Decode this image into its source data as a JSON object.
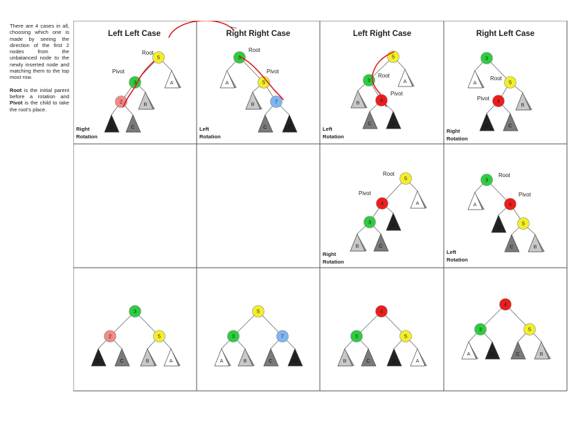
{
  "sidebar": {
    "intro": "There are 4 cases in all, choosing which one is made by seeing the direction of the first 2 nodes from the unbalanced node to the newly inserted node and matching them to the top most row.",
    "root_word": "Root",
    "root_desc": " is the initial parent before a rotation and ",
    "pivot_word": "Pivot",
    "pivot_desc": " is the child to take the root's place."
  },
  "columns": [
    "Left Left Case",
    "Right Right Case",
    "Left Right Case",
    "Right Left Case"
  ],
  "labels": {
    "root": "Root",
    "pivot": "Pivot"
  },
  "rotations": {
    "right_line1": "Right",
    "left_line1": "Left",
    "line2": "Rotation"
  },
  "colors": {
    "green": "#2ecc40",
    "yellow": "#f2ee2a",
    "red": "#ee1c1c",
    "pink": "#f28a85",
    "blue": "#7fb5f2",
    "subtree_white": "#ffffff",
    "subtree_light": "#c8c8c8",
    "subtree_mid": "#7a7a7a",
    "subtree_dark": "#222222",
    "annotation": "#dd1a1a",
    "grid_line": "#555555"
  },
  "cells": [
    {
      "id": "ll-initial",
      "rotation": "right",
      "nodes": [
        {
          "id": "n5",
          "label": "5",
          "color": "yellow"
        },
        {
          "id": "n3",
          "label": "3",
          "color": "green"
        },
        {
          "id": "n2",
          "label": "2",
          "color": "pink"
        }
      ],
      "subtrees": [
        {
          "id": "A",
          "label": "A",
          "shade": "subtree_white"
        },
        {
          "id": "B",
          "label": "B",
          "shade": "subtree_light"
        },
        {
          "id": "C",
          "label": "C",
          "shade": "subtree_mid"
        },
        {
          "id": "D",
          "label": "D",
          "shade": "subtree_dark"
        }
      ],
      "edges": [
        [
          "n5",
          "n3"
        ],
        [
          "n5",
          "A"
        ],
        [
          "n3",
          "n2"
        ],
        [
          "n3",
          "B"
        ],
        [
          "n2",
          "D"
        ],
        [
          "n2",
          "C"
        ]
      ],
      "root": "n5",
      "pivot": "n3"
    },
    {
      "id": "rr-initial",
      "rotation": "left",
      "nodes": [
        {
          "id": "n3",
          "label": "3",
          "color": "green"
        },
        {
          "id": "n5",
          "label": "5",
          "color": "yellow"
        },
        {
          "id": "n7",
          "label": "7",
          "color": "blue"
        }
      ],
      "subtrees": [
        {
          "id": "A",
          "label": "A",
          "shade": "subtree_white"
        },
        {
          "id": "B",
          "label": "B",
          "shade": "subtree_light"
        },
        {
          "id": "C",
          "label": "C",
          "shade": "subtree_mid"
        },
        {
          "id": "D",
          "label": "D",
          "shade": "subtree_dark"
        }
      ],
      "edges": [
        [
          "n3",
          "A"
        ],
        [
          "n3",
          "n5"
        ],
        [
          "n5",
          "B"
        ],
        [
          "n5",
          "n7"
        ],
        [
          "n7",
          "C"
        ],
        [
          "n7",
          "D"
        ]
      ],
      "root": "n3",
      "pivot": "n5"
    },
    {
      "id": "lr-initial",
      "rotation": "left",
      "nodes": [
        {
          "id": "n5",
          "label": "5",
          "color": "yellow"
        },
        {
          "id": "n3",
          "label": "3",
          "color": "green"
        },
        {
          "id": "n4",
          "label": "4",
          "color": "red"
        }
      ],
      "subtrees": [
        {
          "id": "A",
          "label": "A",
          "shade": "subtree_white"
        },
        {
          "id": "B",
          "label": "B",
          "shade": "subtree_light"
        },
        {
          "id": "C",
          "label": "C",
          "shade": "subtree_mid"
        },
        {
          "id": "D",
          "label": "D",
          "shade": "subtree_dark"
        }
      ],
      "edges": [
        [
          "n5",
          "n3"
        ],
        [
          "n5",
          "A"
        ],
        [
          "n3",
          "B"
        ],
        [
          "n3",
          "n4"
        ],
        [
          "n4",
          "C"
        ],
        [
          "n4",
          "D"
        ]
      ],
      "root": "n3",
      "pivot": "n4"
    },
    {
      "id": "rl-initial",
      "rotation": "right",
      "nodes": [
        {
          "id": "n3",
          "label": "3",
          "color": "green"
        },
        {
          "id": "n5",
          "label": "5",
          "color": "yellow"
        },
        {
          "id": "n4",
          "label": "4",
          "color": "red"
        }
      ],
      "subtrees": [
        {
          "id": "A",
          "label": "A",
          "shade": "subtree_white"
        },
        {
          "id": "B",
          "label": "B",
          "shade": "subtree_light"
        },
        {
          "id": "C",
          "label": "C",
          "shade": "subtree_mid"
        },
        {
          "id": "D",
          "label": "D",
          "shade": "subtree_dark"
        }
      ],
      "edges": [
        [
          "n3",
          "A"
        ],
        [
          "n3",
          "n5"
        ],
        [
          "n5",
          "n4"
        ],
        [
          "n5",
          "B"
        ],
        [
          "n4",
          "D"
        ],
        [
          "n4",
          "C"
        ]
      ],
      "root": "n5",
      "pivot": "n4"
    },
    {
      "id": "empty-1",
      "nodes": [],
      "subtrees": [],
      "edges": []
    },
    {
      "id": "empty-2",
      "nodes": [],
      "subtrees": [],
      "edges": []
    },
    {
      "id": "lr-middle",
      "rotation": "right",
      "nodes": [
        {
          "id": "n5",
          "label": "5",
          "color": "yellow"
        },
        {
          "id": "n4",
          "label": "4",
          "color": "red"
        },
        {
          "id": "n3",
          "label": "3",
          "color": "green"
        }
      ],
      "subtrees": [
        {
          "id": "A",
          "label": "A",
          "shade": "subtree_white"
        },
        {
          "id": "B",
          "label": "B",
          "shade": "subtree_light"
        },
        {
          "id": "C",
          "label": "C",
          "shade": "subtree_mid"
        },
        {
          "id": "D",
          "label": "D",
          "shade": "subtree_dark"
        }
      ],
      "edges": [
        [
          "n5",
          "n4"
        ],
        [
          "n5",
          "A"
        ],
        [
          "n4",
          "n3"
        ],
        [
          "n4",
          "D"
        ],
        [
          "n3",
          "B"
        ],
        [
          "n3",
          "C"
        ]
      ],
      "root": "n5",
      "pivot": "n4"
    },
    {
      "id": "rl-middle",
      "rotation": "left",
      "nodes": [
        {
          "id": "n3",
          "label": "3",
          "color": "green"
        },
        {
          "id": "n4",
          "label": "4",
          "color": "red"
        },
        {
          "id": "n5",
          "label": "5",
          "color": "yellow"
        }
      ],
      "subtrees": [
        {
          "id": "A",
          "label": "A",
          "shade": "subtree_white"
        },
        {
          "id": "B",
          "label": "B",
          "shade": "subtree_light"
        },
        {
          "id": "C",
          "label": "C",
          "shade": "subtree_mid"
        },
        {
          "id": "D",
          "label": "D",
          "shade": "subtree_dark"
        }
      ],
      "edges": [
        [
          "n3",
          "A"
        ],
        [
          "n3",
          "n4"
        ],
        [
          "n4",
          "D"
        ],
        [
          "n4",
          "n5"
        ],
        [
          "n5",
          "C"
        ],
        [
          "n5",
          "B"
        ]
      ],
      "root": "n3",
      "pivot": "n4"
    },
    {
      "id": "ll-balanced",
      "nodes": [
        {
          "id": "n3",
          "label": "3",
          "color": "green"
        },
        {
          "id": "n2",
          "label": "2",
          "color": "pink"
        },
        {
          "id": "n5",
          "label": "5",
          "color": "yellow"
        }
      ],
      "subtrees": [
        {
          "id": "D",
          "label": "D",
          "shade": "subtree_dark"
        },
        {
          "id": "C",
          "label": "C",
          "shade": "subtree_mid"
        },
        {
          "id": "B",
          "label": "B",
          "shade": "subtree_light"
        },
        {
          "id": "A",
          "label": "A",
          "shade": "subtree_white"
        }
      ],
      "edges": [
        [
          "n3",
          "n2"
        ],
        [
          "n3",
          "n5"
        ],
        [
          "n2",
          "D"
        ],
        [
          "n2",
          "C"
        ],
        [
          "n5",
          "B"
        ],
        [
          "n5",
          "A"
        ]
      ]
    },
    {
      "id": "rr-balanced",
      "nodes": [
        {
          "id": "n5",
          "label": "5",
          "color": "yellow"
        },
        {
          "id": "n3",
          "label": "3",
          "color": "green"
        },
        {
          "id": "n7",
          "label": "7",
          "color": "blue"
        }
      ],
      "subtrees": [
        {
          "id": "A",
          "label": "A",
          "shade": "subtree_white"
        },
        {
          "id": "B",
          "label": "B",
          "shade": "subtree_light"
        },
        {
          "id": "C",
          "label": "C",
          "shade": "subtree_mid"
        },
        {
          "id": "D",
          "label": "D",
          "shade": "subtree_dark"
        }
      ],
      "edges": [
        [
          "n5",
          "n3"
        ],
        [
          "n5",
          "n7"
        ],
        [
          "n3",
          "A"
        ],
        [
          "n3",
          "B"
        ],
        [
          "n7",
          "C"
        ],
        [
          "n7",
          "D"
        ]
      ]
    },
    {
      "id": "lr-balanced",
      "nodes": [
        {
          "id": "n4",
          "label": "4",
          "color": "red"
        },
        {
          "id": "n3",
          "label": "3",
          "color": "green"
        },
        {
          "id": "n5",
          "label": "5",
          "color": "yellow"
        }
      ],
      "subtrees": [
        {
          "id": "B",
          "label": "B",
          "shade": "subtree_light"
        },
        {
          "id": "C",
          "label": "C",
          "shade": "subtree_mid"
        },
        {
          "id": "D",
          "label": "D",
          "shade": "subtree_dark"
        },
        {
          "id": "A",
          "label": "A",
          "shade": "subtree_white"
        }
      ],
      "edges": [
        [
          "n4",
          "n3"
        ],
        [
          "n4",
          "n5"
        ],
        [
          "n3",
          "B"
        ],
        [
          "n3",
          "C"
        ],
        [
          "n5",
          "D"
        ],
        [
          "n5",
          "A"
        ]
      ]
    },
    {
      "id": "rl-balanced",
      "nodes": [
        {
          "id": "n4",
          "label": "4",
          "color": "red"
        },
        {
          "id": "n3",
          "label": "3",
          "color": "green"
        },
        {
          "id": "n5",
          "label": "5",
          "color": "yellow"
        }
      ],
      "subtrees": [
        {
          "id": "A",
          "label": "A",
          "shade": "subtree_white"
        },
        {
          "id": "D",
          "label": "D",
          "shade": "subtree_dark"
        },
        {
          "id": "C",
          "label": "C",
          "shade": "subtree_mid"
        },
        {
          "id": "B",
          "label": "B",
          "shade": "subtree_light"
        }
      ],
      "edges": [
        [
          "n4",
          "n3"
        ],
        [
          "n4",
          "n5"
        ],
        [
          "n3",
          "A"
        ],
        [
          "n3",
          "D"
        ],
        [
          "n5",
          "C"
        ],
        [
          "n5",
          "B"
        ]
      ]
    }
  ]
}
